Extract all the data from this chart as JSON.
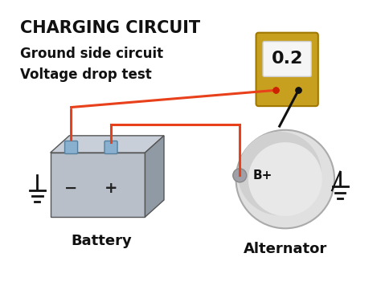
{
  "title": "CHARGING CIRCUIT",
  "subtitle_line1": "Ground side circuit",
  "subtitle_line2": "Voltage drop test",
  "meter_value": "0.2",
  "battery_label": "Battery",
  "alternator_label": "Alternator",
  "bp_label": "B+",
  "bg_color": "#ffffff",
  "wire_color_red": "#e8401a",
  "wire_color_black": "#111111",
  "battery_color_main": "#b0b8c0",
  "battery_color_dark": "#808890",
  "meter_body_color": "#c8a020",
  "meter_screen_color": "#f0f0f0",
  "alternator_color": "#d8d8d8",
  "title_fontsize": 15,
  "subtitle_fontsize": 12,
  "label_fontsize": 13
}
